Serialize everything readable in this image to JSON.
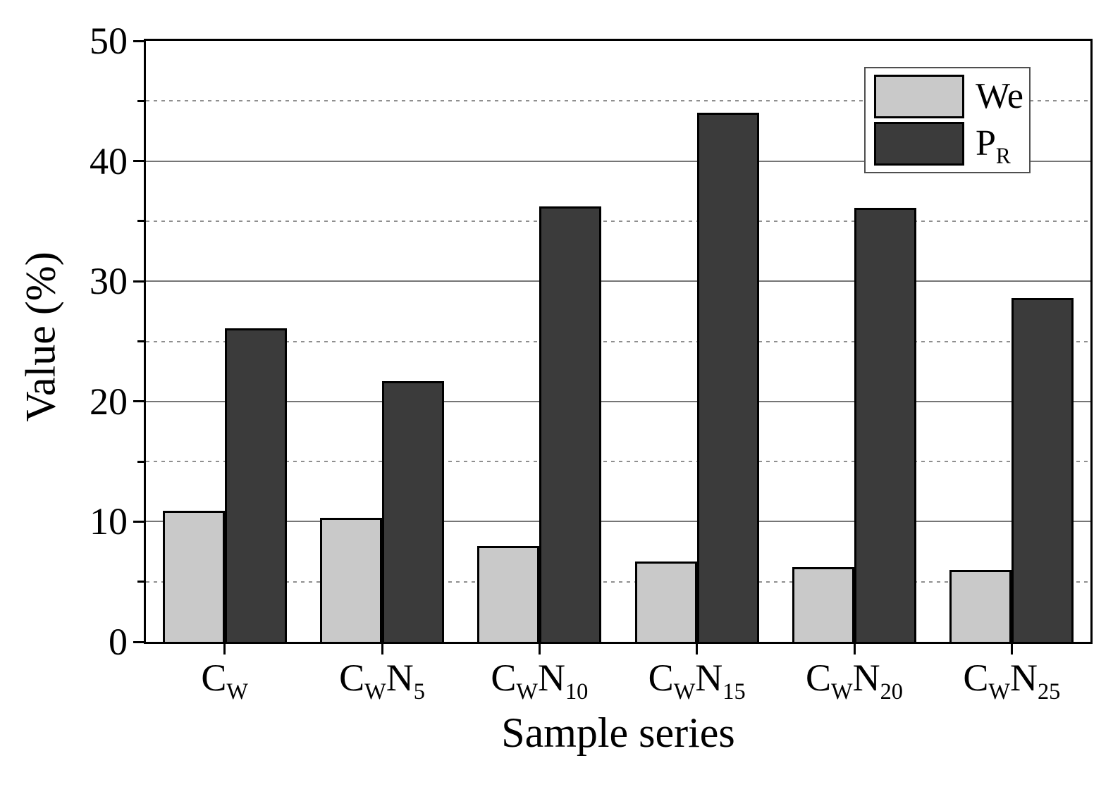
{
  "figure_title": "",
  "chart_data": {
    "type": "bar",
    "title": "",
    "xlabel": "Sample series",
    "ylabel": "Value (%)",
    "ylim": [
      0,
      50
    ],
    "y_major_ticks": [
      0,
      10,
      20,
      30,
      40,
      50
    ],
    "y_minor_ticks": [
      5,
      15,
      25,
      35,
      45
    ],
    "grid": "horizontal: solid gray at major ticks, fine dashed at minor ticks",
    "legend_position": "top-right inside plot",
    "categories": [
      "CW",
      "CWN5",
      "CWN10",
      "CWN15",
      "CWN20",
      "CWN25"
    ],
    "categories_rich": [
      {
        "parts": [
          {
            "t": "C",
            "sub": "W"
          }
        ]
      },
      {
        "parts": [
          {
            "t": "C",
            "sub": "W"
          },
          {
            "t": "N",
            "sub": "5"
          }
        ]
      },
      {
        "parts": [
          {
            "t": "C",
            "sub": "W"
          },
          {
            "t": "N",
            "sub": "10"
          }
        ]
      },
      {
        "parts": [
          {
            "t": "C",
            "sub": "W"
          },
          {
            "t": "N",
            "sub": "15"
          }
        ]
      },
      {
        "parts": [
          {
            "t": "C",
            "sub": "W"
          },
          {
            "t": "N",
            "sub": "20"
          }
        ]
      },
      {
        "parts": [
          {
            "t": "C",
            "sub": "W"
          },
          {
            "t": "N",
            "sub": "25"
          }
        ]
      }
    ],
    "series": [
      {
        "name": "We",
        "name_sub": "",
        "color": "#c9c9c9",
        "values": [
          10.9,
          10.3,
          8.0,
          6.7,
          6.2,
          6.0
        ]
      },
      {
        "name": "P",
        "name_sub": "R",
        "color": "#3b3b3b",
        "values": [
          26.1,
          21.7,
          36.2,
          44.0,
          36.1,
          28.6
        ]
      }
    ],
    "colors": {
      "bar_border": "#000000",
      "grid_major": "#757575",
      "grid_minor": "#8f8f8f",
      "axis": "#000000",
      "legend_border": "#4f4f4f",
      "background": "#ffffff"
    }
  }
}
